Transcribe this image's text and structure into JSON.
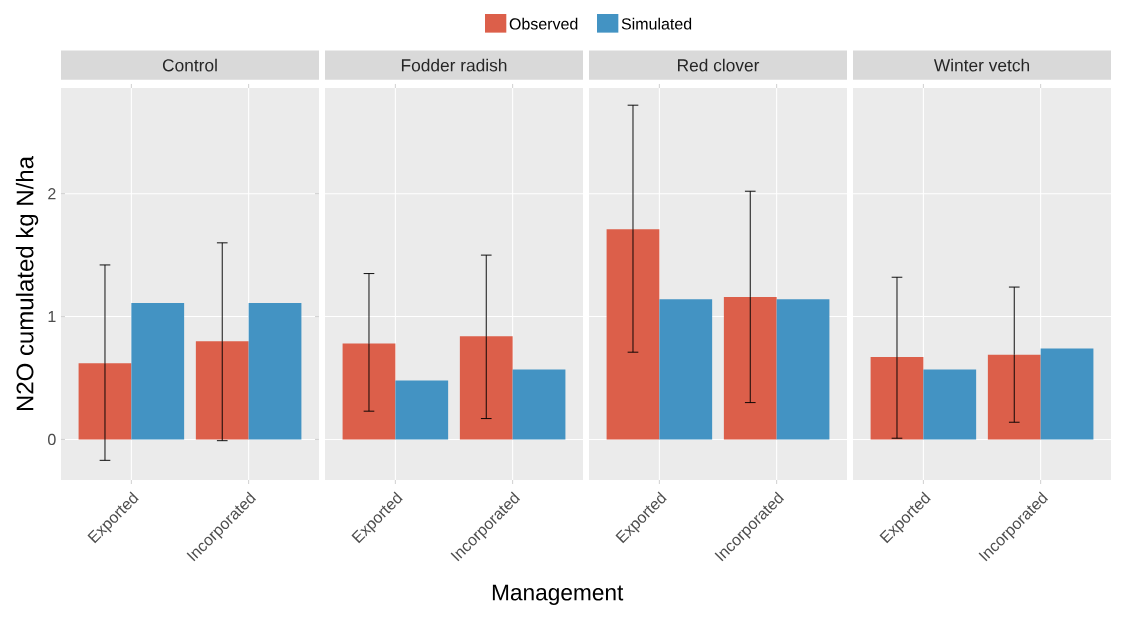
{
  "chart_data": [
    {
      "type": "bar",
      "title": "Control",
      "ylabel": "N2O cumulated kg N/ha",
      "categories": [
        "Exported",
        "Incorporated"
      ],
      "ylim": [
        -0.33,
        2.86
      ],
      "yticks": [
        0,
        1,
        2
      ],
      "grid": true,
      "legend": "top",
      "series": [
        {
          "name": "Observed",
          "color": "#dc5f4a",
          "values": [
            0.62,
            0.8
          ],
          "errors": [
            [
              -0.17,
              1.42
            ],
            [
              -0.01,
              1.6
            ]
          ]
        },
        {
          "name": "Simulated",
          "color": "#4393c3",
          "values": [
            1.11,
            1.11
          ]
        }
      ]
    },
    {
      "type": "bar",
      "title": "Fodder radish",
      "xlabel": "Management",
      "categories": [
        "Exported",
        "Incorporated"
      ],
      "ylim": [
        -0.33,
        2.86
      ],
      "yticks": [
        0,
        1,
        2
      ],
      "grid": true,
      "tick_labels": "x",
      "series": [
        {
          "color": "#dc5f4a",
          "values": [
            0.78,
            0.84
          ],
          "errors": [
            [
              0.23,
              1.35
            ],
            [
              0.17,
              1.5
            ]
          ]
        },
        {
          "color": "#4393c3",
          "values": [
            0.48,
            0.57
          ]
        }
      ]
    },
    {
      "type": "bar",
      "title": "Red clover",
      "categories": [
        "Exported",
        "Incorporated"
      ],
      "ylim": [
        -0.33,
        2.86
      ],
      "yticks": [
        0,
        1,
        2
      ],
      "grid": true,
      "tick_labels": "x",
      "series": [
        {
          "color": "#dc5f4a",
          "values": [
            1.71,
            1.16
          ],
          "errors": [
            [
              0.71,
              2.72
            ],
            [
              0.3,
              2.02
            ]
          ]
        },
        {
          "color": "#4393c3",
          "values": [
            1.14,
            1.14
          ]
        }
      ]
    },
    {
      "type": "bar",
      "title": "Winter vetch",
      "categories": [
        "Exported",
        "Incorporated"
      ],
      "ylim": [
        -0.33,
        2.86
      ],
      "yticks": [
        0,
        1,
        2
      ],
      "grid": true,
      "tick_labels": "x",
      "series": [
        {
          "color": "#dc5f4a",
          "values": [
            0.67,
            0.69
          ],
          "errors": [
            [
              0.01,
              1.32
            ],
            [
              0.14,
              1.24
            ]
          ]
        },
        {
          "color": "#4393c3",
          "values": [
            0.57,
            0.74
          ]
        }
      ]
    }
  ]
}
